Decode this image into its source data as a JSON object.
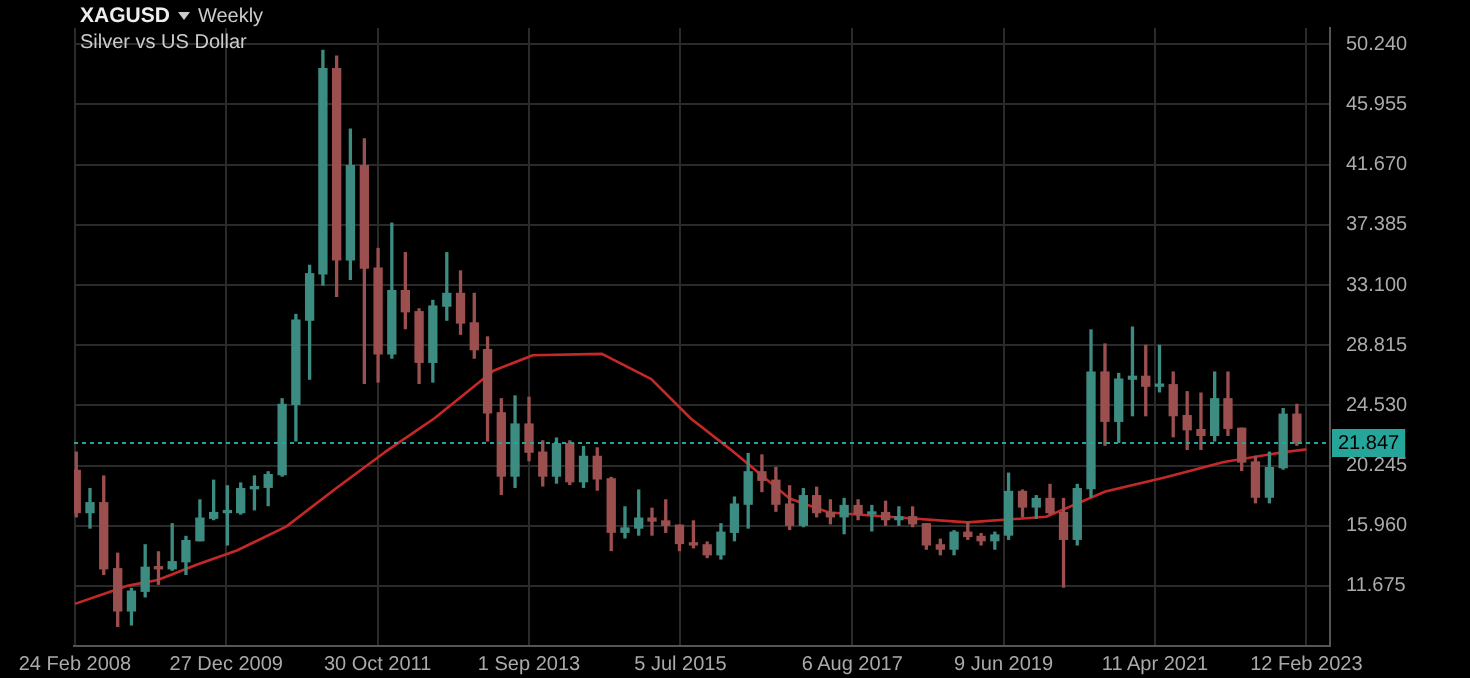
{
  "chart_data": {
    "type": "candlestick",
    "title": "XAGUSD",
    "subtitle": "Silver vs US Dollar",
    "annotations": [
      "Weekly"
    ],
    "x": [
      "2008-03-01",
      "2008-05-01",
      "2008-07-01",
      "2008-09-01",
      "2008-11-01",
      "2009-01-01",
      "2009-03-01",
      "2009-05-01",
      "2009-07-01",
      "2009-09-01",
      "2009-11-01",
      "2010-01-01",
      "2010-03-01",
      "2010-05-01",
      "2010-07-01",
      "2010-09-01",
      "2010-11-01",
      "2011-01-01",
      "2011-03-01",
      "2011-05-01",
      "2011-07-01",
      "2011-09-01",
      "2011-11-01",
      "2012-01-01",
      "2012-03-01",
      "2012-05-01",
      "2012-07-01",
      "2012-09-01",
      "2012-11-01",
      "2013-01-01",
      "2013-03-01",
      "2013-05-01",
      "2013-07-01",
      "2013-09-01",
      "2013-11-01",
      "2014-01-01",
      "2014-03-01",
      "2014-05-01",
      "2014-07-01",
      "2014-09-01",
      "2014-11-01",
      "2015-01-01",
      "2015-03-01",
      "2015-05-01",
      "2015-07-01",
      "2015-09-01",
      "2015-11-01",
      "2016-01-01",
      "2016-03-01",
      "2016-05-01",
      "2016-07-01",
      "2016-09-01",
      "2016-11-01",
      "2017-01-01",
      "2017-03-01",
      "2017-05-01",
      "2017-07-01",
      "2017-09-01",
      "2017-11-01",
      "2018-01-01",
      "2018-03-01",
      "2018-05-01",
      "2018-07-01",
      "2018-09-01",
      "2018-11-01",
      "2019-01-01",
      "2019-03-01",
      "2019-05-01",
      "2019-07-01",
      "2019-09-01",
      "2019-11-01",
      "2020-01-01",
      "2020-03-01",
      "2020-05-01",
      "2020-07-01",
      "2020-09-01",
      "2020-11-01",
      "2021-01-01",
      "2021-03-01",
      "2021-05-01",
      "2021-07-01",
      "2021-09-01",
      "2021-11-01",
      "2022-01-01",
      "2022-03-01",
      "2022-05-01",
      "2022-07-01",
      "2022-09-01",
      "2022-11-01",
      "2023-01-01"
    ],
    "ohlc": [
      [
        19.9,
        21.2,
        16.6,
        16.9
      ],
      [
        16.9,
        18.6,
        15.8,
        17.6
      ],
      [
        17.6,
        19.5,
        12.5,
        12.9
      ],
      [
        12.9,
        14.0,
        8.8,
        9.9
      ],
      [
        9.9,
        11.5,
        8.9,
        11.3
      ],
      [
        11.3,
        14.6,
        10.9,
        13.0
      ],
      [
        13.0,
        14.1,
        11.8,
        12.9
      ],
      [
        12.9,
        16.1,
        12.8,
        13.4
      ],
      [
        13.4,
        15.2,
        12.5,
        14.9
      ],
      [
        14.9,
        17.8,
        14.9,
        16.5
      ],
      [
        16.5,
        19.2,
        16.4,
        16.9
      ],
      [
        16.9,
        18.8,
        14.6,
        16.9
      ],
      [
        16.9,
        19.0,
        16.8,
        18.6
      ],
      [
        18.6,
        19.5,
        17.1,
        18.7
      ],
      [
        18.7,
        19.8,
        17.4,
        19.6
      ],
      [
        19.6,
        25.0,
        19.5,
        24.6
      ],
      [
        24.6,
        31.0,
        22.0,
        30.6
      ],
      [
        30.6,
        34.5,
        26.4,
        33.9
      ],
      [
        33.9,
        49.8,
        33.1,
        48.5
      ],
      [
        48.5,
        49.4,
        32.3,
        34.9
      ],
      [
        34.9,
        44.2,
        33.5,
        41.6
      ],
      [
        41.6,
        43.5,
        26.1,
        34.3
      ],
      [
        34.3,
        35.7,
        26.2,
        28.2
      ],
      [
        28.2,
        37.5,
        27.9,
        32.7
      ],
      [
        32.7,
        35.4,
        30.0,
        31.2
      ],
      [
        31.2,
        31.4,
        26.1,
        27.6
      ],
      [
        27.6,
        32.0,
        26.2,
        31.6
      ],
      [
        31.6,
        35.4,
        30.6,
        32.5
      ],
      [
        32.5,
        34.1,
        29.6,
        30.4
      ],
      [
        30.4,
        32.5,
        27.9,
        28.5
      ],
      [
        28.5,
        29.4,
        22.0,
        24.0
      ],
      [
        24.0,
        25.0,
        18.2,
        19.5
      ],
      [
        19.5,
        25.2,
        18.7,
        23.2
      ],
      [
        23.2,
        25.1,
        20.6,
        21.2
      ],
      [
        21.2,
        22.0,
        18.8,
        19.5
      ],
      [
        19.5,
        22.2,
        19.0,
        21.8
      ],
      [
        21.8,
        22.0,
        18.9,
        19.1
      ],
      [
        19.1,
        21.6,
        18.7,
        20.9
      ],
      [
        20.9,
        21.5,
        18.5,
        19.3
      ],
      [
        19.3,
        19.4,
        14.2,
        15.5
      ],
      [
        15.5,
        17.3,
        15.1,
        15.8
      ],
      [
        15.8,
        18.5,
        15.3,
        16.5
      ],
      [
        16.5,
        17.2,
        15.3,
        16.3
      ],
      [
        16.3,
        17.8,
        15.5,
        16.0
      ],
      [
        16.0,
        16.0,
        14.2,
        14.7
      ],
      [
        14.7,
        16.3,
        14.4,
        14.6
      ],
      [
        14.6,
        14.8,
        13.7,
        13.9
      ],
      [
        13.9,
        16.1,
        13.6,
        15.5
      ],
      [
        15.5,
        18.0,
        14.9,
        17.5
      ],
      [
        17.5,
        21.1,
        15.8,
        19.8
      ],
      [
        19.8,
        21.0,
        18.4,
        19.2
      ],
      [
        19.2,
        20.1,
        17.0,
        17.5
      ],
      [
        17.5,
        18.8,
        15.7,
        16.0
      ],
      [
        16.0,
        18.6,
        15.9,
        18.1
      ],
      [
        18.1,
        18.7,
        16.6,
        16.9
      ],
      [
        16.9,
        17.8,
        16.1,
        16.6
      ],
      [
        16.6,
        17.9,
        15.4,
        17.4
      ],
      [
        17.4,
        17.8,
        16.4,
        16.8
      ],
      [
        16.8,
        17.4,
        15.6,
        16.9
      ],
      [
        16.9,
        17.7,
        16.0,
        16.4
      ],
      [
        16.4,
        17.3,
        16.0,
        16.6
      ],
      [
        16.6,
        17.3,
        15.9,
        16.1
      ],
      [
        16.1,
        16.1,
        14.3,
        14.6
      ],
      [
        14.6,
        15.0,
        13.9,
        14.3
      ],
      [
        14.3,
        15.6,
        13.9,
        15.5
      ],
      [
        15.5,
        16.2,
        15.0,
        15.2
      ],
      [
        15.2,
        15.4,
        14.6,
        14.9
      ],
      [
        14.9,
        15.5,
        14.3,
        15.3
      ],
      [
        15.3,
        19.7,
        15.0,
        18.4
      ],
      [
        18.4,
        18.5,
        16.6,
        17.3
      ],
      [
        17.3,
        18.1,
        16.5,
        17.9
      ],
      [
        17.9,
        18.9,
        16.8,
        16.9
      ],
      [
        16.9,
        17.9,
        11.6,
        15.0
      ],
      [
        15.0,
        18.9,
        14.6,
        18.6
      ],
      [
        18.6,
        29.9,
        18.0,
        26.9
      ],
      [
        26.9,
        28.9,
        21.7,
        23.4
      ],
      [
        23.4,
        26.8,
        21.9,
        26.4
      ],
      [
        26.4,
        30.1,
        23.8,
        26.6
      ],
      [
        26.6,
        28.8,
        23.8,
        25.9
      ],
      [
        25.9,
        28.8,
        25.5,
        26.0
      ],
      [
        26.0,
        26.9,
        22.3,
        23.8
      ],
      [
        23.8,
        25.5,
        21.4,
        22.8
      ],
      [
        22.8,
        25.4,
        21.4,
        22.4
      ],
      [
        22.4,
        26.9,
        22.0,
        25.0
      ],
      [
        25.0,
        26.9,
        22.4,
        22.9
      ],
      [
        22.9,
        22.9,
        19.9,
        20.5
      ],
      [
        20.5,
        20.9,
        17.6,
        18.0
      ],
      [
        18.0,
        21.2,
        17.6,
        20.1
      ],
      [
        20.1,
        24.3,
        20.0,
        23.9
      ],
      [
        23.9,
        24.6,
        21.7,
        21.85
      ]
    ],
    "colors": [
      "#9c4f4f",
      "#3d8c82",
      "#9c4f4f",
      "#9c4f4f",
      "#3d8c82",
      "#3d8c82",
      "#9c4f4f",
      "#3d8c82",
      "#3d8c82",
      "#3d8c82",
      "#3d8c82",
      "#3d8c82",
      "#3d8c82",
      "#3d8c82",
      "#3d8c82",
      "#3d8c82",
      "#3d8c82",
      "#3d8c82",
      "#3d8c82",
      "#9c4f4f",
      "#3d8c82",
      "#9c4f4f",
      "#9c4f4f",
      "#3d8c82",
      "#9c4f4f",
      "#9c4f4f",
      "#3d8c82",
      "#3d8c82",
      "#9c4f4f",
      "#9c4f4f",
      "#9c4f4f",
      "#9c4f4f",
      "#3d8c82",
      "#9c4f4f",
      "#9c4f4f",
      "#3d8c82",
      "#9c4f4f",
      "#3d8c82",
      "#9c4f4f",
      "#9c4f4f",
      "#3d8c82",
      "#3d8c82",
      "#9c4f4f",
      "#9c4f4f",
      "#9c4f4f",
      "#9c4f4f",
      "#9c4f4f",
      "#3d8c82",
      "#3d8c82",
      "#3d8c82",
      "#9c4f4f",
      "#9c4f4f",
      "#9c4f4f",
      "#3d8c82",
      "#9c4f4f",
      "#9c4f4f",
      "#3d8c82",
      "#9c4f4f",
      "#3d8c82",
      "#9c4f4f",
      "#3d8c82",
      "#9c4f4f",
      "#9c4f4f",
      "#9c4f4f",
      "#3d8c82",
      "#9c4f4f",
      "#9c4f4f",
      "#3d8c82",
      "#3d8c82",
      "#9c4f4f",
      "#3d8c82",
      "#9c4f4f",
      "#9c4f4f",
      "#3d8c82",
      "#3d8c82",
      "#9c4f4f",
      "#3d8c82",
      "#3d8c82",
      "#9c4f4f",
      "#3d8c82",
      "#9c4f4f",
      "#9c4f4f",
      "#9c4f4f",
      "#3d8c82",
      "#9c4f4f",
      "#9c4f4f",
      "#9c4f4f",
      "#3d8c82",
      "#3d8c82",
      "#9c4f4f"
    ],
    "series": [
      {
        "type": "line",
        "color": "#c62828",
        "x": [
          "2008-02-24",
          "2008-10-18",
          "2009-02-26",
          "2009-08-20",
          "2010-02-12",
          "2010-09-19",
          "2011-04-26",
          "2011-12-01",
          "2012-07-07",
          "2013-03-27",
          "2013-09-18",
          "2014-07-22",
          "2015-02-26",
          "2015-08-20",
          "2016-02-12",
          "2016-11-01",
          "2017-04-25",
          "2018-01-13",
          "2018-12-30",
          "2019-12-15",
          "2020-09-03",
          "2021-05-24",
          "2022-02-11",
          "2022-11-01",
          "2023-02-12"
        ],
        "values": [
          10.4,
          11.7,
          12.1,
          13.2,
          14.2,
          15.9,
          18.6,
          21.2,
          23.6,
          27.0,
          28.1,
          28.2,
          26.4,
          23.6,
          21.4,
          17.9,
          16.9,
          16.6,
          16.2,
          16.6,
          18.4,
          19.4,
          20.5,
          21.2,
          21.4
        ]
      }
    ],
    "xlim": [
      "2008-02-20",
      "2023-05-28"
    ],
    "xticks": [
      {
        "value": "2008-02-24",
        "label": "24 Feb 2008"
      },
      {
        "value": "2009-12-27",
        "label": "27 Dec 2009"
      },
      {
        "value": "2011-10-30",
        "label": "30 Oct 2011"
      },
      {
        "value": "2013-09-01",
        "label": "1 Sep 2013"
      },
      {
        "value": "2015-07-05",
        "label": "5 Jul 2015"
      },
      {
        "value": "2017-08-06",
        "label": "6 Aug 2017"
      },
      {
        "value": "2019-06-09",
        "label": "9 Jun 2019"
      },
      {
        "value": "2021-04-11",
        "label": "11 Apr 2021"
      },
      {
        "value": "2023-02-12",
        "label": "12 Feb 2023"
      }
    ],
    "ylim": [
      7.4,
      51.4
    ],
    "yticks": [
      11.675,
      {
        "value": 15.96,
        "label": "15.960"
      },
      20.245,
      {
        "value": 24.53,
        "label": "24.530"
      },
      28.815,
      {
        "value": 33.1,
        "label": "33.100"
      },
      37.385,
      {
        "value": 41.67,
        "label": "41.670"
      },
      45.955,
      {
        "value": 50.24,
        "label": "50.240"
      }
    ],
    "grid": true,
    "ref_lines": [
      {
        "axis": "y",
        "value": 21.847,
        "label": "21.847",
        "color": "#26a69a",
        "line_style": "dotted"
      }
    ]
  }
}
